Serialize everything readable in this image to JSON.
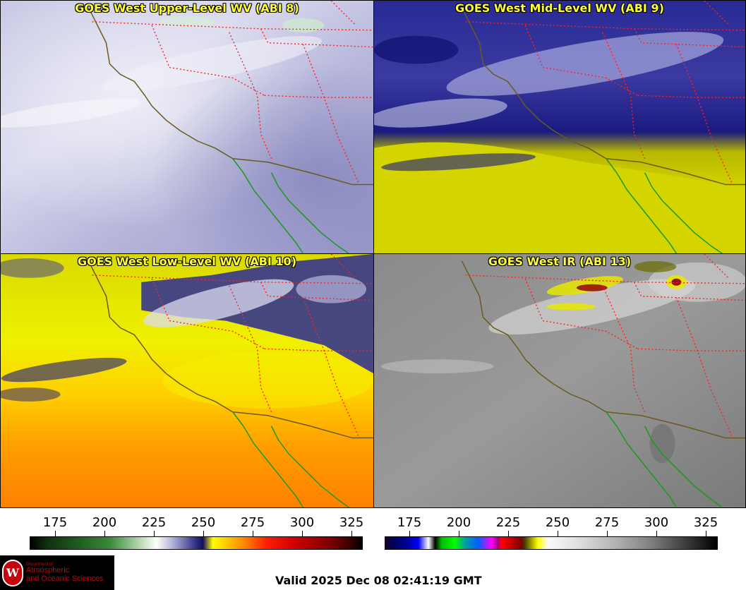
{
  "panels": [
    {
      "title": "GOES West Upper-Level WV (ABI 8)"
    },
    {
      "title": "GOES West Mid-Level WV (ABI 9)"
    },
    {
      "title": "GOES West Low-Level WV (ABI 10)"
    },
    {
      "title": "GOES West IR (ABI 13)"
    }
  ],
  "scales": [
    {
      "name": "water-vapor-scale",
      "labels": [
        "175",
        "200",
        "225",
        "250",
        "275",
        "300",
        "325"
      ]
    },
    {
      "name": "ir-scale",
      "labels": [
        "175",
        "200",
        "225",
        "250",
        "275",
        "300",
        "325"
      ]
    }
  ],
  "logo": {
    "dept": "Department of",
    "line1": "Atmospheric",
    "line2": "and Oceanic Sciences",
    "crest": "W"
  },
  "footer": {
    "valid": "Valid 2025 Dec 08 02:41:19 GMT"
  },
  "colors": {
    "title_text": "#ffff33",
    "state_borders": "#ff2020",
    "coast_us": "#6b5a1e",
    "coast_mexico": "#1a9a1a"
  }
}
